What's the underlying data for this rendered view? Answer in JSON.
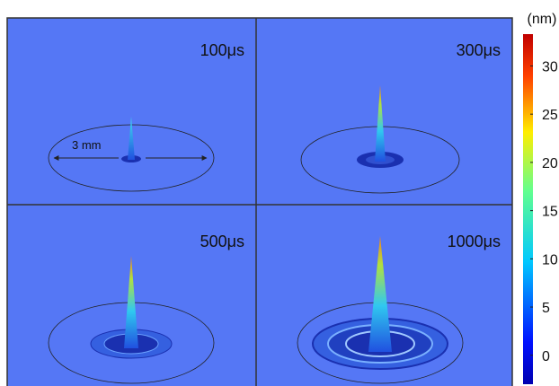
{
  "panels": [
    {
      "label": "100μs"
    },
    {
      "label": "300μs"
    },
    {
      "label": "500μs"
    },
    {
      "label": "1000μs"
    }
  ],
  "annotation": "3 mm",
  "colorbar": {
    "unit": "(nm)",
    "range": [
      -3,
      33.3
    ],
    "ticks": [
      0,
      5,
      10,
      15,
      20,
      25,
      30
    ]
  }
}
